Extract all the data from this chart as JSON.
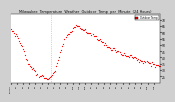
{
  "title": "Milwaukee  Temperature  Weather  Outdoor  Temp  per  Minute  (24 Hours)",
  "bg_color": "#d0d0d0",
  "plot_bg_color": "#ffffff",
  "line_color": "#ff0000",
  "markersize": 0.8,
  "ylim": [
    20,
    75
  ],
  "xlim": [
    0,
    1440
  ],
  "yticks": [
    25,
    30,
    35,
    40,
    45,
    50,
    55,
    60,
    65,
    70
  ],
  "vline_x": 390,
  "vline_color": "#aaaaaa",
  "legend_label": "Outdoor Temp",
  "legend_color": "#ff0000",
  "temp_data": [
    62,
    61,
    60,
    59,
    58,
    57,
    56,
    55,
    54,
    52,
    50,
    48,
    46,
    44,
    42,
    40,
    38,
    36,
    34,
    33,
    32,
    31,
    30,
    29,
    28,
    27,
    27,
    26,
    26,
    25,
    25,
    24,
    24,
    24,
    24,
    24,
    24,
    24,
    25,
    25,
    26,
    27,
    28,
    30,
    32,
    35,
    38,
    41,
    44,
    47,
    50,
    52,
    54,
    56,
    57,
    58,
    59,
    60,
    61,
    62,
    63,
    64,
    64,
    65,
    65,
    65,
    65,
    64,
    64,
    63,
    63,
    62,
    62,
    61,
    61,
    60,
    60,
    59,
    58,
    58,
    57,
    57,
    56,
    56,
    55,
    55,
    54,
    53,
    53,
    52,
    51,
    51,
    50,
    49,
    49,
    48,
    48,
    47,
    47,
    46,
    46,
    45,
    45,
    44,
    44,
    44,
    43,
    43,
    43,
    42,
    42,
    42,
    42,
    41,
    41,
    41,
    41,
    40,
    40,
    40,
    40,
    39,
    39,
    39,
    38,
    38,
    38,
    38,
    37,
    37,
    37,
    36,
    36,
    36,
    35,
    35,
    35,
    35,
    34,
    34,
    34,
    34,
    33,
    33,
    33
  ],
  "x_tick_labels": [
    "12:01a",
    "1a",
    "2a",
    "3a",
    "4a",
    "5a",
    "6a",
    "7a",
    "8a",
    "9a",
    "10a",
    "11a",
    "12p",
    "1p",
    "2p",
    "3p",
    "4p",
    "5p",
    "6p",
    "7p",
    "8p",
    "9p",
    "10p",
    "11p"
  ],
  "x_tick_positions": [
    0,
    60,
    120,
    180,
    240,
    300,
    360,
    420,
    480,
    540,
    600,
    660,
    720,
    780,
    840,
    900,
    960,
    1020,
    1080,
    1140,
    1200,
    1260,
    1320,
    1380
  ]
}
